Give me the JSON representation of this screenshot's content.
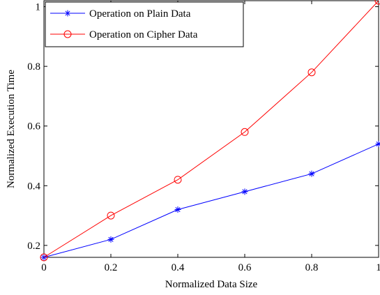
{
  "chart_data": {
    "type": "line",
    "title": "",
    "xlabel": "Normalized Data Size",
    "ylabel": "Normalized Execution Time",
    "xlim": [
      0,
      1
    ],
    "ylim": [
      0.16,
      1.02
    ],
    "x_ticks": [
      0,
      0.2,
      0.4,
      0.6,
      0.8,
      1
    ],
    "x_tick_labels": [
      "0",
      "0.2",
      "0.4",
      "0.6",
      "0.8",
      "1"
    ],
    "y_ticks": [
      0.2,
      0.4,
      0.6,
      0.8,
      1
    ],
    "y_tick_labels": [
      "0.2",
      "0.4",
      "0.6",
      "0.8",
      "1"
    ],
    "grid": false,
    "legend_position": "top-left",
    "series": [
      {
        "name": "Operation on Plain Data",
        "x": [
          0,
          0.2,
          0.4,
          0.6,
          0.8,
          1
        ],
        "values": [
          0.16,
          0.22,
          0.32,
          0.38,
          0.44,
          0.54
        ],
        "color": "#0000ff",
        "marker": "asterisk"
      },
      {
        "name": "Operation on Cipher Data",
        "x": [
          0,
          0.2,
          0.4,
          0.6,
          0.8,
          1
        ],
        "values": [
          0.16,
          0.3,
          0.42,
          0.58,
          0.78,
          1.02
        ],
        "color": "#ff0000",
        "marker": "circle"
      }
    ]
  }
}
